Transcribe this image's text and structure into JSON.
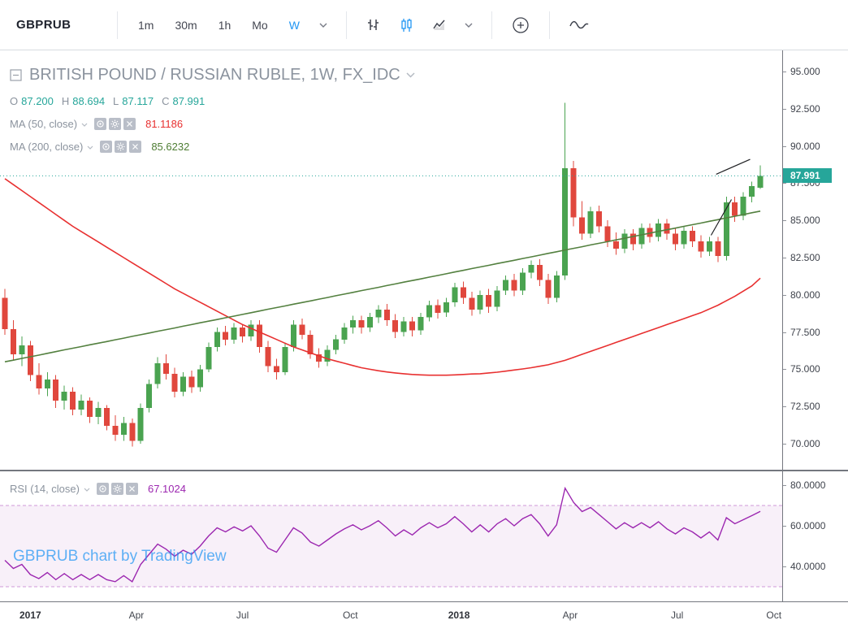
{
  "toolbar": {
    "symbol": "GBPRUB",
    "intervals": [
      {
        "label": "1m",
        "active": false
      },
      {
        "label": "30m",
        "active": false
      },
      {
        "label": "1h",
        "active": false
      },
      {
        "label": "Mo",
        "active": false
      },
      {
        "label": "W",
        "active": true
      }
    ]
  },
  "legend": {
    "title": "BRITISH POUND / RUSSIAN RUBLE, 1W, FX_IDC",
    "ohlc": {
      "o_label": "O",
      "o": "87.200",
      "h_label": "H",
      "h": "88.694",
      "l_label": "L",
      "l": "87.117",
      "c_label": "C",
      "c": "87.991"
    },
    "ma50": {
      "label": "MA (50, close)",
      "value": "81.1186"
    },
    "ma200": {
      "label": "MA (200, close)",
      "value": "85.6232"
    }
  },
  "rsi_legend": {
    "label": "RSI (14, close)",
    "value": "67.1024"
  },
  "watermark": "GBPRUB chart by TradingView",
  "price_label": "87.991",
  "chart_data": {
    "type": "candlestick",
    "symbol": "GBPRUB",
    "title": "BRITISH POUND / RUSSIAN RUBLE, 1W, FX_IDC",
    "interval": "1W",
    "last_price": 87.991,
    "ohlc": [
      [
        79.8,
        80.4,
        77.3,
        77.7
      ],
      [
        77.7,
        78.3,
        75.6,
        76.0
      ],
      [
        76.0,
        77.2,
        75.2,
        76.6
      ],
      [
        76.6,
        76.9,
        74.2,
        74.6
      ],
      [
        74.6,
        75.4,
        73.3,
        73.7
      ],
      [
        73.7,
        74.8,
        73.2,
        74.3
      ],
      [
        74.3,
        74.6,
        72.4,
        72.9
      ],
      [
        72.9,
        73.9,
        72.3,
        73.5
      ],
      [
        73.5,
        73.8,
        71.9,
        72.3
      ],
      [
        72.3,
        73.3,
        71.9,
        72.9
      ],
      [
        72.9,
        73.1,
        71.4,
        71.8
      ],
      [
        71.8,
        72.8,
        71.3,
        72.4
      ],
      [
        72.4,
        72.6,
        70.9,
        71.2
      ],
      [
        71.2,
        71.9,
        70.2,
        70.6
      ],
      [
        70.6,
        71.8,
        70.2,
        71.4
      ],
      [
        71.4,
        71.7,
        69.8,
        70.2
      ],
      [
        70.2,
        72.7,
        70.0,
        72.4
      ],
      [
        72.4,
        74.3,
        72.1,
        74.0
      ],
      [
        74.0,
        75.8,
        73.7,
        75.4
      ],
      [
        75.4,
        76.0,
        74.3,
        74.7
      ],
      [
        74.7,
        75.1,
        73.1,
        73.5
      ],
      [
        73.5,
        74.8,
        73.2,
        74.5
      ],
      [
        74.5,
        74.9,
        73.4,
        73.8
      ],
      [
        73.8,
        75.3,
        73.5,
        75.0
      ],
      [
        75.0,
        76.8,
        74.8,
        76.5
      ],
      [
        76.5,
        77.8,
        76.2,
        77.5
      ],
      [
        77.5,
        77.9,
        76.6,
        77.0
      ],
      [
        77.0,
        78.1,
        76.7,
        77.8
      ],
      [
        77.8,
        78.0,
        76.8,
        77.2
      ],
      [
        77.2,
        78.3,
        76.9,
        78.0
      ],
      [
        78.0,
        78.3,
        76.1,
        76.5
      ],
      [
        76.5,
        76.9,
        74.8,
        75.2
      ],
      [
        75.2,
        75.7,
        74.3,
        74.8
      ],
      [
        74.8,
        76.8,
        74.6,
        76.5
      ],
      [
        76.5,
        78.3,
        76.2,
        78.0
      ],
      [
        78.0,
        78.4,
        77.0,
        77.3
      ],
      [
        77.3,
        77.6,
        75.7,
        76.0
      ],
      [
        76.0,
        76.4,
        75.1,
        75.5
      ],
      [
        75.5,
        76.6,
        75.2,
        76.3
      ],
      [
        76.3,
        77.3,
        76.0,
        77.0
      ],
      [
        77.0,
        78.1,
        76.7,
        77.8
      ],
      [
        77.8,
        78.6,
        77.4,
        78.3
      ],
      [
        78.3,
        78.6,
        77.4,
        77.8
      ],
      [
        77.8,
        78.8,
        77.5,
        78.5
      ],
      [
        78.5,
        79.3,
        78.1,
        79.0
      ],
      [
        79.0,
        79.4,
        77.9,
        78.3
      ],
      [
        78.3,
        78.7,
        77.1,
        77.5
      ],
      [
        77.5,
        78.5,
        77.2,
        78.2
      ],
      [
        78.2,
        78.5,
        77.2,
        77.6
      ],
      [
        77.6,
        78.8,
        77.3,
        78.5
      ],
      [
        78.5,
        79.6,
        78.2,
        79.3
      ],
      [
        79.3,
        79.7,
        78.4,
        78.8
      ],
      [
        78.8,
        79.8,
        78.5,
        79.5
      ],
      [
        79.5,
        80.8,
        79.2,
        80.5
      ],
      [
        80.5,
        80.9,
        79.4,
        79.8
      ],
      [
        79.8,
        80.2,
        78.6,
        79.0
      ],
      [
        79.0,
        80.3,
        78.7,
        80.0
      ],
      [
        80.0,
        80.4,
        78.8,
        79.2
      ],
      [
        79.2,
        80.6,
        78.9,
        80.3
      ],
      [
        80.3,
        81.3,
        80.0,
        81.0
      ],
      [
        81.0,
        81.4,
        79.9,
        80.3
      ],
      [
        80.3,
        81.8,
        80.0,
        81.5
      ],
      [
        81.5,
        82.3,
        81.1,
        82.0
      ],
      [
        82.0,
        82.4,
        80.6,
        81.0
      ],
      [
        81.0,
        81.4,
        79.4,
        79.8
      ],
      [
        79.8,
        81.6,
        79.5,
        81.3
      ],
      [
        81.3,
        92.9,
        81.0,
        88.5
      ],
      [
        88.5,
        89.0,
        84.6,
        85.2
      ],
      [
        85.2,
        86.3,
        83.7,
        84.1
      ],
      [
        84.1,
        85.9,
        83.8,
        85.6
      ],
      [
        85.6,
        86.0,
        84.2,
        84.6
      ],
      [
        84.6,
        85.0,
        83.2,
        83.6
      ],
      [
        83.6,
        84.2,
        82.7,
        83.1
      ],
      [
        83.1,
        84.4,
        82.8,
        84.1
      ],
      [
        84.1,
        84.4,
        83.0,
        83.4
      ],
      [
        83.4,
        84.8,
        83.1,
        84.5
      ],
      [
        84.5,
        84.8,
        83.5,
        83.9
      ],
      [
        83.9,
        85.1,
        83.6,
        84.8
      ],
      [
        84.8,
        85.1,
        83.7,
        84.1
      ],
      [
        84.1,
        84.5,
        83.0,
        83.4
      ],
      [
        83.4,
        84.6,
        83.1,
        84.3
      ],
      [
        84.3,
        84.6,
        83.2,
        83.6
      ],
      [
        83.6,
        84.0,
        82.5,
        82.9
      ],
      [
        82.9,
        83.9,
        82.6,
        83.6
      ],
      [
        83.6,
        83.9,
        82.2,
        82.6
      ],
      [
        82.6,
        86.6,
        82.3,
        86.2
      ],
      [
        86.2,
        86.6,
        84.9,
        85.3
      ],
      [
        85.3,
        86.9,
        85.0,
        86.6
      ],
      [
        86.6,
        87.6,
        86.2,
        87.3
      ],
      [
        87.2,
        88.694,
        87.117,
        87.991
      ]
    ],
    "series": [
      {
        "name": "MA (50, close)",
        "color": "#e83030",
        "values": [
          87.8,
          87.4,
          87.0,
          86.6,
          86.2,
          85.8,
          85.4,
          85.0,
          84.6,
          84.25,
          83.9,
          83.55,
          83.2,
          82.85,
          82.5,
          82.15,
          81.8,
          81.45,
          81.1,
          80.75,
          80.4,
          80.1,
          79.8,
          79.5,
          79.2,
          78.9,
          78.6,
          78.3,
          78.0,
          77.75,
          77.5,
          77.25,
          77.0,
          76.75,
          76.5,
          76.3,
          76.1,
          75.9,
          75.7,
          75.55,
          75.4,
          75.25,
          75.1,
          75.0,
          74.9,
          74.82,
          74.75,
          74.7,
          74.65,
          74.62,
          74.6,
          74.6,
          74.6,
          74.62,
          74.65,
          74.68,
          74.7,
          74.75,
          74.8,
          74.87,
          74.95,
          75.02,
          75.1,
          75.2,
          75.3,
          75.45,
          75.6,
          75.8,
          76.0,
          76.2,
          76.4,
          76.6,
          76.8,
          77.0,
          77.2,
          77.4,
          77.6,
          77.8,
          78.0,
          78.2,
          78.4,
          78.6,
          78.8,
          79.05,
          79.3,
          79.6,
          79.9,
          80.25,
          80.6,
          81.12
        ]
      },
      {
        "name": "MA (200, close)",
        "color": "#53803f",
        "values": [
          75.5,
          75.61,
          75.73,
          75.84,
          75.95,
          76.07,
          76.18,
          76.3,
          76.41,
          76.52,
          76.64,
          76.75,
          76.86,
          76.98,
          77.09,
          77.21,
          77.32,
          77.43,
          77.55,
          77.66,
          77.77,
          77.89,
          78.0,
          78.12,
          78.23,
          78.34,
          78.46,
          78.57,
          78.68,
          78.8,
          78.91,
          79.03,
          79.14,
          79.25,
          79.37,
          79.48,
          79.59,
          79.71,
          79.82,
          79.94,
          80.05,
          80.16,
          80.28,
          80.39,
          80.5,
          80.62,
          80.73,
          80.85,
          80.96,
          81.07,
          81.19,
          81.3,
          81.41,
          81.53,
          81.64,
          81.76,
          81.87,
          81.98,
          82.1,
          82.21,
          82.32,
          82.44,
          82.55,
          82.66,
          82.78,
          82.89,
          83.01,
          83.12,
          83.23,
          83.35,
          83.46,
          83.57,
          83.69,
          83.8,
          83.92,
          84.03,
          84.14,
          84.26,
          84.37,
          84.48,
          84.6,
          84.71,
          84.82,
          84.94,
          85.05,
          85.17,
          85.28,
          85.39,
          85.51,
          85.62
        ]
      }
    ],
    "rsi": {
      "name": "RSI (14, close)",
      "color": "#9c27b0",
      "bands": [
        30,
        70
      ],
      "values": [
        43,
        39,
        41,
        36,
        34,
        37,
        33.5,
        36.5,
        33.5,
        36,
        33.5,
        36,
        33.5,
        32.5,
        35.5,
        32.5,
        41,
        46,
        51,
        48.5,
        45,
        48,
        46,
        50,
        55,
        59,
        57,
        59.5,
        57.5,
        60,
        55,
        49,
        47,
        53,
        59,
        56.5,
        52,
        50,
        53,
        56,
        58.5,
        60.5,
        58,
        60,
        62.5,
        59,
        55,
        58,
        55.5,
        59,
        61.5,
        59,
        61,
        64.5,
        61,
        57,
        60.5,
        57,
        61,
        63.5,
        60,
        63.5,
        65.5,
        61,
        55,
        60.5,
        78.5,
        71.5,
        67,
        69,
        65.5,
        62,
        58.5,
        61.5,
        59,
        61.5,
        59,
        62,
        58.5,
        56,
        59,
        57,
        54,
        57,
        53,
        64,
        61,
        63,
        65,
        67.1
      ]
    },
    "price_axis": {
      "min": 68.25,
      "max": 96.42,
      "ticks": [
        95,
        92.5,
        90,
        87.5,
        85,
        82.5,
        80,
        77.5,
        75,
        72.5,
        70
      ],
      "decimals": 3
    },
    "rsi_axis": {
      "min": 22.8,
      "max": 86.8,
      "ticks": [
        80,
        60,
        40
      ],
      "decimals": 4
    },
    "time_ticks": [
      {
        "label": "2017",
        "i": 3,
        "year": true
      },
      {
        "label": "Apr",
        "i": 15.5
      },
      {
        "label": "Jul",
        "i": 28
      },
      {
        "label": "Oct",
        "i": 40.7
      },
      {
        "label": "2018",
        "i": 53.5,
        "year": true
      },
      {
        "label": "Apr",
        "i": 66.6
      },
      {
        "label": "Jul",
        "i": 79.2
      },
      {
        "label": "Oct",
        "i": 90.6
      }
    ],
    "annotations": [
      {
        "type": "segment",
        "x1": 83.2,
        "p1": 84.0,
        "x2": 85.6,
        "p2": 86.4
      },
      {
        "type": "segment",
        "x1": 83.8,
        "p1": 88.1,
        "x2": 87.8,
        "p2": 89.1
      }
    ],
    "colors": {
      "up": "#4aa350",
      "down": "#e0473d",
      "ma50": "#e83030",
      "ma200": "#53803f",
      "rsi": "#9c27b0",
      "last_price": "#26a69a",
      "ohlc_text": "#26a69a",
      "ma50_text": "#e83030",
      "ma200_text": "#4e7d33",
      "rsi_text": "#9c27b0",
      "rsi_band_fill": "rgba(156,39,176,0.07)",
      "rsi_band_line": "rgba(156,39,176,0.45)",
      "annotation": "#1f2023"
    }
  }
}
